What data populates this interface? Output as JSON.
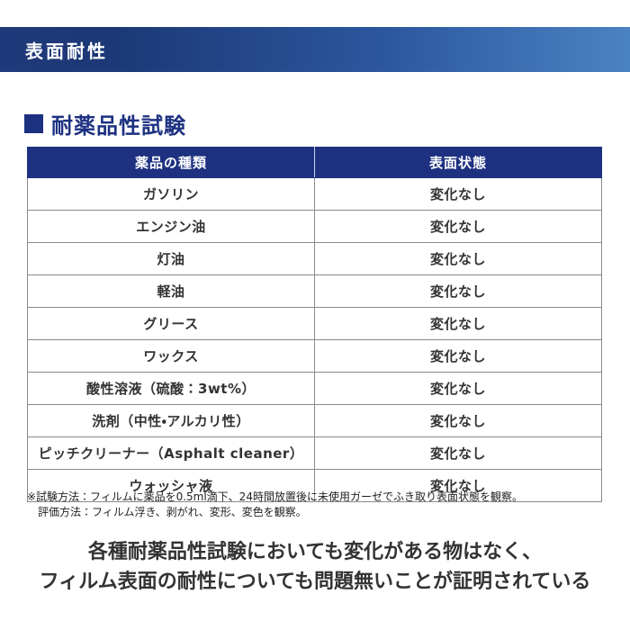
{
  "banner": {
    "title": "表面耐性",
    "gradient_left": "#1c3876",
    "gradient_right": "#4b82c3"
  },
  "section": {
    "title": "耐薬品性試験",
    "accent_color": "#1d3181"
  },
  "table": {
    "headers": {
      "chemical": "薬品の種類",
      "state": "表面状態"
    },
    "header_bg": "#1e3181",
    "rows": [
      {
        "chemical": "ガソリン",
        "state": "変化なし"
      },
      {
        "chemical": "エンジン油",
        "state": "変化なし"
      },
      {
        "chemical": "灯油",
        "state": "変化なし"
      },
      {
        "chemical": "軽油",
        "state": "変化なし"
      },
      {
        "chemical": "グリース",
        "state": "変化なし"
      },
      {
        "chemical": "ワックス",
        "state": "変化なし"
      },
      {
        "chemical": "酸性溶液（硫酸：3wt%）",
        "state": "変化なし"
      },
      {
        "chemical": "洗剤（中性・アルカリ性）",
        "state": "変化なし"
      },
      {
        "chemical": "ピッチクリーナー（Asphalt cleaner）",
        "state": "変化なし"
      },
      {
        "chemical": "ウォッシャ液",
        "state": "変化なし"
      }
    ]
  },
  "notes": {
    "line1": "※試験方法：フィルムに薬品を0.5ml滴下、24時間放置後に未使用ガーゼでふき取り表面状態を観察。",
    "line2": "評価方法：フィルム浮き、剥がれ、変形、変色を観察。"
  },
  "conclusion": {
    "line1": "各種耐薬品性試験においても変化がある物はなく、",
    "line2": "フィルム表面の耐性についても問題無いことが証明されている"
  }
}
